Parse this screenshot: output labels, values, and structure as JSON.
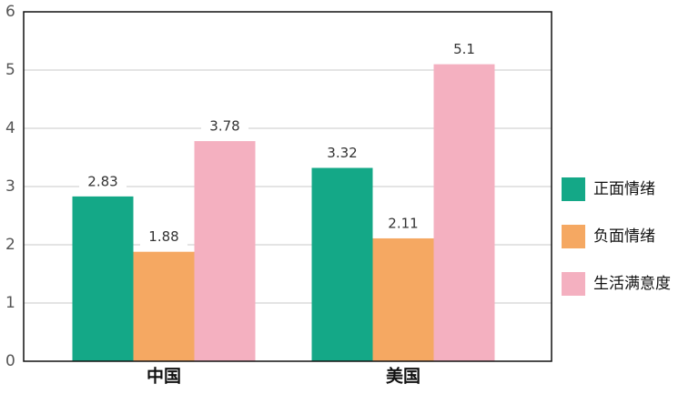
{
  "chart_data": {
    "type": "bar",
    "categories": [
      "中国",
      "美国"
    ],
    "series": [
      {
        "name": "正面情绪",
        "color": "#14a887",
        "values": [
          2.83,
          3.32
        ]
      },
      {
        "name": "负面情绪",
        "color": "#f5a862",
        "values": [
          1.88,
          2.11
        ]
      },
      {
        "name": "生活满意度",
        "color": "#f4b0c0",
        "values": [
          3.78,
          5.1
        ]
      }
    ],
    "ylim": [
      0,
      6
    ],
    "yticks": [
      0,
      1,
      2,
      3,
      4,
      5,
      6
    ],
    "grid": true,
    "legend": "right"
  }
}
